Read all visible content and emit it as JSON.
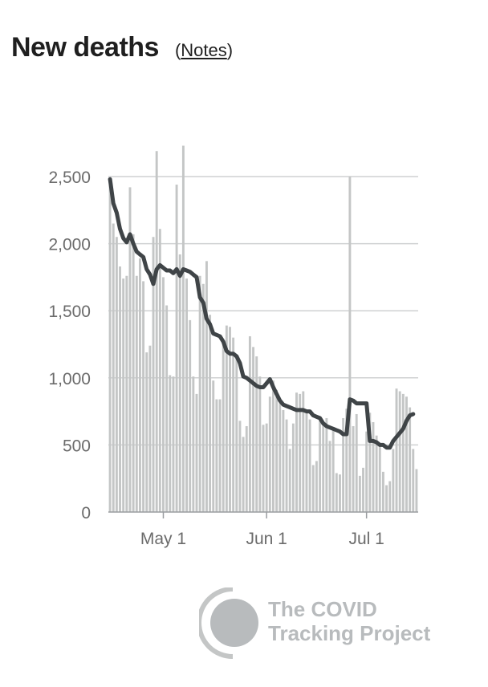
{
  "header": {
    "title": "New deaths",
    "notes_open": "(",
    "notes_link": "Notes",
    "notes_close": ")"
  },
  "chart_data": {
    "type": "bar",
    "title": "New deaths",
    "xlabel": "",
    "ylabel": "",
    "ylim": [
      0,
      2500
    ],
    "y_ticks": [
      0,
      500,
      1000,
      1500,
      2000,
      2500
    ],
    "y_tick_labels": [
      "0",
      "500",
      "1,000",
      "1,500",
      "2,000",
      "2,500"
    ],
    "x_ticks": [
      {
        "label": "May 1",
        "index": 16
      },
      {
        "label": "Jun 1",
        "index": 47
      },
      {
        "label": "Jul 1",
        "index": 77
      }
    ],
    "grid": true,
    "colors": {
      "bars": "#c4c6c6",
      "line": "#3f4447",
      "grid": "#cfd1d2",
      "axis": "#9a9da0"
    },
    "series": [
      {
        "kind": "bar",
        "values": [
          2450,
          2150,
          2050,
          1830,
          1740,
          1760,
          2420,
          2070,
          1760,
          1890,
          1720,
          1190,
          1240,
          2050,
          2690,
          2110,
          1750,
          1540,
          1020,
          1010,
          2440,
          1920,
          2730,
          1740,
          1430,
          1010,
          880,
          1760,
          1700,
          1870,
          1470,
          980,
          840,
          840,
          1260,
          1390,
          1380,
          1300,
          1150,
          680,
          560,
          640,
          1310,
          1230,
          1160,
          1010,
          650,
          660,
          860,
          980,
          910,
          820,
          760,
          690,
          470,
          660,
          890,
          880,
          900,
          760,
          690,
          350,
          380,
          700,
          650,
          700,
          530,
          620,
          290,
          280,
          700,
          770,
          2500,
          640,
          730,
          270,
          330,
          600,
          740,
          670,
          570,
          510,
          300,
          200,
          230,
          470,
          920,
          900,
          880,
          860,
          780,
          470,
          320
        ]
      },
      {
        "kind": "line",
        "values": [
          2480,
          2300,
          2230,
          2110,
          2040,
          2010,
          2070,
          2000,
          1940,
          1920,
          1900,
          1810,
          1770,
          1700,
          1810,
          1840,
          1820,
          1800,
          1800,
          1780,
          1810,
          1760,
          1810,
          1800,
          1790,
          1770,
          1750,
          1600,
          1560,
          1440,
          1400,
          1330,
          1320,
          1310,
          1270,
          1200,
          1180,
          1180,
          1160,
          1110,
          1010,
          1000,
          980,
          960,
          940,
          930,
          930,
          960,
          990,
          930,
          880,
          830,
          800,
          790,
          780,
          770,
          760,
          760,
          760,
          750,
          750,
          720,
          710,
          700,
          660,
          640,
          630,
          620,
          610,
          600,
          580,
          580,
          840,
          830,
          810,
          810,
          810,
          810,
          530,
          530,
          520,
          500,
          500,
          480,
          480,
          530,
          560,
          590,
          620,
          680,
          720,
          730
        ]
      }
    ]
  },
  "logo": {
    "line1": "The COVID",
    "line2": "Tracking Project"
  }
}
